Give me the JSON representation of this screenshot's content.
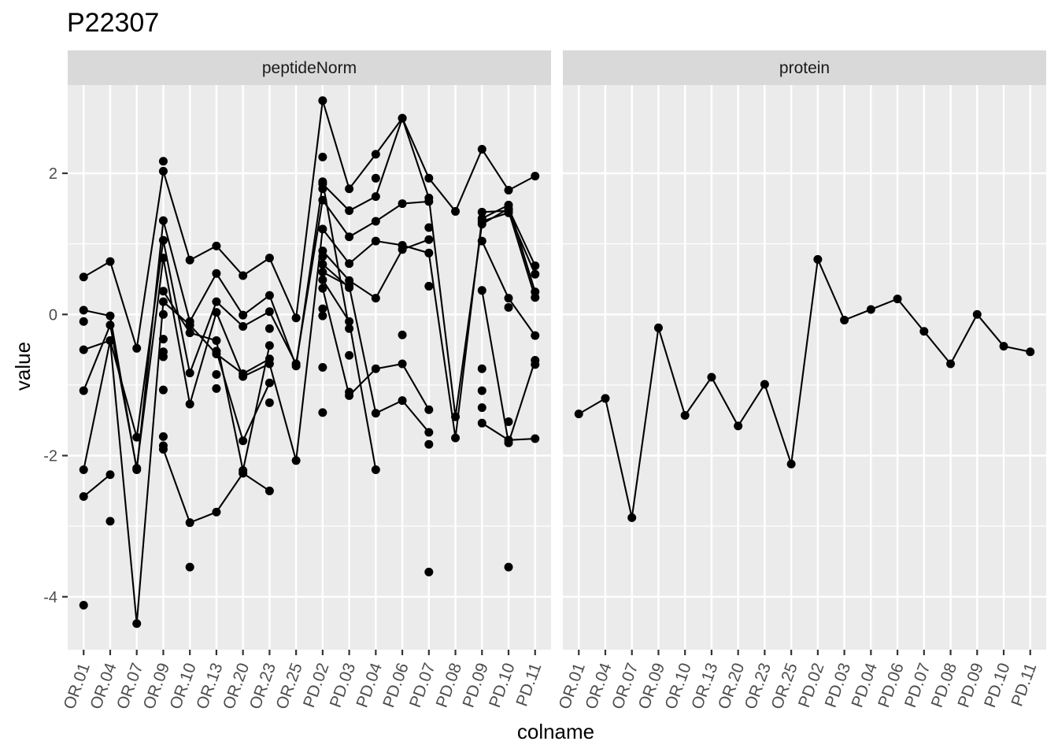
{
  "chart_data": {
    "type": "line",
    "title": "P22307",
    "xlabel": "colname",
    "ylabel": "value",
    "ylim": [
      -4.75,
      3.25
    ],
    "yticks": [
      -4,
      -2,
      0,
      2
    ],
    "y_tick_labels": [
      "-4",
      "-2",
      "0",
      "2"
    ],
    "categories": [
      "OR.01",
      "OR.04",
      "OR.07",
      "OR.09",
      "OR.10",
      "OR.13",
      "OR.20",
      "OR.23",
      "OR.25",
      "PD.02",
      "PD.03",
      "PD.04",
      "PD.06",
      "PD.07",
      "PD.08",
      "PD.09",
      "PD.10",
      "PD.11"
    ],
    "panels": [
      {
        "label": "peptideNorm",
        "series": [
          {
            "values": [
              0.53,
              0.75,
              -0.48,
              2.03,
              0.77,
              0.97,
              0.55,
              0.8,
              -0.05,
              3.03,
              1.78,
              2.27,
              2.78,
              1.93,
              1.46,
              2.34,
              1.76,
              1.96
            ]
          },
          {
            "values": [
              0.06,
              -0.02,
              -2.2,
              1.33,
              -0.1,
              0.58,
              -0.01,
              0.27,
              -0.73,
              1.85,
              1.47,
              1.67,
              2.78,
              1.65,
              -1.45,
              1.28,
              1.5,
              0.69
            ]
          },
          {
            "values": [
              -0.5,
              -0.37,
              -1.74,
              1.05,
              -0.83,
              0.18,
              -0.17,
              0.04,
              -0.7,
              1.62,
              1.1,
              1.32,
              1.57,
              1.6,
              null,
              1.45,
              1.47,
              0.24
            ]
          },
          {
            "values": [
              -1.08,
              -0.15,
              -2.18,
              0.8,
              -1.27,
              0.03,
              -0.88,
              -0.7,
              -2.07,
              1.21,
              0.72,
              1.04,
              0.98,
              0.87,
              -1.75,
              1.36,
              1.55,
              0.32
            ]
          },
          {
            "values": [
              -2.2,
              -0.37,
              -4.38,
              0.18,
              -0.15,
              -0.56,
              -0.84,
              -0.63,
              null,
              0.9,
              0.48,
              0.23,
              0.92,
              1.06,
              null,
              1.32,
              1.44,
              0.57
            ]
          },
          {
            "values": [
              -2.58,
              -2.27,
              null,
              -1.91,
              -2.95,
              -2.8,
              -2.25,
              -2.5,
              null,
              0.37,
              -1.15,
              -0.77,
              -0.7,
              -1.35,
              null,
              1.04,
              0.23,
              -0.3
            ]
          },
          {
            "values": [
              null,
              null,
              null,
              0.33,
              -0.26,
              -0.37,
              -2.21,
              -0.44,
              null,
              0.6,
              0.4,
              -1.4,
              -1.22,
              -1.67,
              null,
              0.34,
              -1.82,
              -0.65
            ]
          },
          {
            "values": [
              null,
              null,
              null,
              -0.6,
              null,
              -0.52,
              -1.79,
              -0.97,
              null,
              0.49,
              -0.1,
              -2.2,
              null,
              -1.84,
              null,
              -1.54,
              -1.78,
              -1.76
            ]
          },
          {
            "values": [
              null,
              null,
              null,
              null,
              null,
              null,
              null,
              null,
              null,
              1.88,
              -0.2,
              null,
              null,
              1.23,
              null,
              null,
              null,
              -0.71
            ]
          },
          {
            "values": [
              null,
              null,
              null,
              null,
              null,
              null,
              null,
              null,
              null,
              0.71,
              0.38,
              null,
              null,
              0.4,
              null,
              null,
              null,
              null
            ]
          }
        ],
        "extra_points": [
          {
            "x": "OR.01",
            "values": [
              -0.1,
              -4.12
            ]
          },
          {
            "x": "OR.04",
            "values": [
              -2.93
            ]
          },
          {
            "x": "OR.09",
            "values": [
              2.17,
              0.0,
              -0.35,
              -0.53,
              -1.07,
              -1.73,
              -1.86
            ]
          },
          {
            "x": "OR.10",
            "values": [
              -3.58
            ]
          },
          {
            "x": "OR.13",
            "values": [
              -0.85,
              -1.05
            ]
          },
          {
            "x": "OR.23",
            "values": [
              -0.2,
              -1.25
            ]
          },
          {
            "x": "PD.02",
            "values": [
              2.23,
              1.78,
              0.82,
              0.08,
              -0.02,
              -0.75,
              -1.39
            ]
          },
          {
            "x": "PD.03",
            "values": [
              -0.58,
              -1.1
            ]
          },
          {
            "x": "PD.04",
            "values": [
              1.93
            ]
          },
          {
            "x": "PD.06",
            "values": [
              -0.29
            ]
          },
          {
            "x": "PD.07",
            "values": [
              -3.65
            ]
          },
          {
            "x": "PD.09",
            "values": [
              -0.77,
              -1.08,
              -1.32
            ]
          },
          {
            "x": "PD.10",
            "values": [
              -1.52,
              -3.58,
              0.1
            ]
          }
        ]
      },
      {
        "label": "protein",
        "series": [
          {
            "values": [
              -1.41,
              -1.19,
              -2.88,
              -0.19,
              -1.43,
              -0.89,
              -1.58,
              -0.99,
              -2.12,
              0.78,
              -0.08,
              0.07,
              0.22,
              -0.24,
              -0.7,
              0.0,
              -0.45,
              -0.53
            ]
          }
        ],
        "extra_points": []
      }
    ],
    "grid": true,
    "legend": "none",
    "colors": {
      "panel_bg": "#ebebeb",
      "strip_bg": "#d9d9d9",
      "grid": "#ffffff",
      "mark": "#000000",
      "tick_text": "#4d4d4d"
    }
  }
}
